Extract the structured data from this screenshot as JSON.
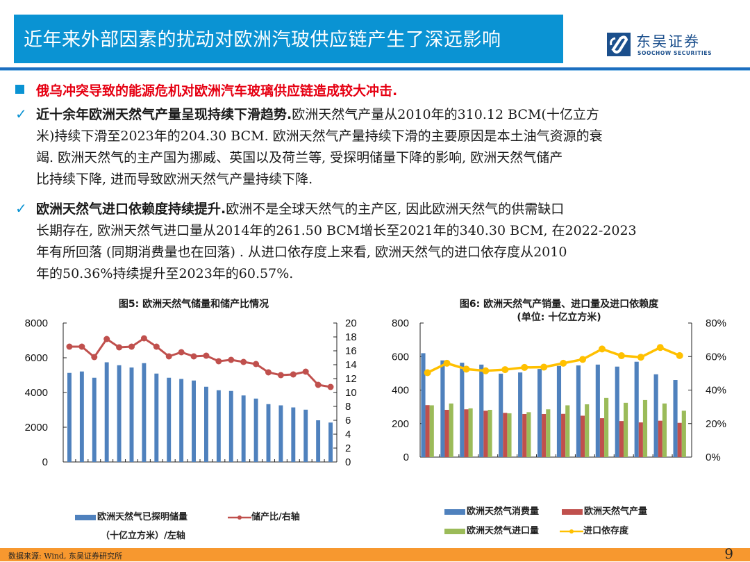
{
  "header": {
    "title": "近年来外部因素的扰动对欧洲汽玻供应链产生了深远影响",
    "logo_cn": "东吴证券",
    "logo_en": "SOOCHOW SECURITIES"
  },
  "body": {
    "headline": "俄乌冲突导致的能源危机对欧洲汽车玻璃供应链造成较大冲击.",
    "points": [
      {
        "bold": "近十余年欧洲天然气产量呈现持续下滑趋势.",
        "lines": [
          "欧洲天然气产量从2010年的310.12 BCM(十亿立方",
          "米)持续下滑至2023年的204.30 BCM. 欧洲天然气产量持续下滑的主要原因是本土油气资源的衰",
          "竭. 欧洲天然气的主产国为挪威、英国以及荷兰等, 受探明储量下降的影响, 欧洲天然气储产",
          "比持续下降, 进而导致欧洲天然气产量持续下降."
        ]
      },
      {
        "bold": "欧洲天然气进口依赖度持续提升.",
        "lines": [
          "欧洲不是全球天然气的主产区, 因此欧洲天然气的供需缺口",
          "长期存在, 欧洲天然气进口量从2014年的261.50 BCM增长至2021年的340.30 BCM, 在2022-2023",
          "年有所回落 (同期消费量也在回落) . 从进口依存度上来看, 欧洲天然气的进口依存度从2010",
          "年的50.36%持续提升至2023年的60.57%."
        ]
      }
    ]
  },
  "footer": {
    "source": "数据来源: Wind, 东吴证券研究所",
    "page": "9"
  },
  "colors": {
    "title_bg": "#0a93d3",
    "bar_blue": "#4f81bd",
    "line_red": "#c0504d",
    "bar_green": "#9bbb59",
    "line_yellow": "#ffc000",
    "footer_bg": "#f7982f"
  },
  "chart_data": [
    {
      "type": "bar+line",
      "title": "图5: 欧洲天然气储量和储产比情况",
      "categories": [
        "2000",
        "2001",
        "2002",
        "2003",
        "2004",
        "2005",
        "2006",
        "2007",
        "2008",
        "2009",
        "2010",
        "2011",
        "2012",
        "2013",
        "2014",
        "2015",
        "2016",
        "2017",
        "2018",
        "2019",
        "2020",
        "2021"
      ],
      "x_tick_labels": [
        "2000",
        "2002",
        "2004",
        "2006",
        "2008",
        "2010",
        "2012",
        "2014",
        "2016",
        "2018",
        "2020"
      ],
      "series": [
        {
          "name": "欧洲天然气已探明储量",
          "name_line2": "（十亿立方米）/左轴",
          "type": "bar",
          "axis": "left",
          "values": [
            5130,
            5210,
            4850,
            5740,
            5570,
            5440,
            5690,
            5090,
            4850,
            4780,
            4690,
            4330,
            4130,
            4090,
            3830,
            3650,
            3330,
            3260,
            3140,
            3010,
            2400,
            2270
          ]
        },
        {
          "name": "储产比/右轴",
          "type": "line",
          "axis": "right",
          "values": [
            16.6,
            16.6,
            15.1,
            17.7,
            16.5,
            16.6,
            17.8,
            16.6,
            15.2,
            15.8,
            15.2,
            15.3,
            14.5,
            14.7,
            14.4,
            14.1,
            12.9,
            12.5,
            12.6,
            13.0,
            11.1,
            10.8
          ]
        }
      ],
      "ylim_left": [
        0,
        8000
      ],
      "yticks_left": [
        "0",
        "2000",
        "4000",
        "6000",
        "8000"
      ],
      "ylim_right": [
        0,
        20
      ],
      "yticks_right": [
        "0",
        "2",
        "4",
        "6",
        "8",
        "10",
        "12",
        "14",
        "16",
        "18",
        "20"
      ],
      "legend_position": "bottom",
      "grid": false
    },
    {
      "type": "bar+line",
      "title": "图6: 欧洲天然气产销量、进口量及进口依赖度",
      "subtitle": "(单位: 十亿立方米)",
      "categories": [
        "2010",
        "2011",
        "2012",
        "2013",
        "2014",
        "2015",
        "2016",
        "2017",
        "2018",
        "2019",
        "2020",
        "2021",
        "2022",
        "2023"
      ],
      "series": [
        {
          "name": "欧洲天然气消费量",
          "type": "bar",
          "axis": "left",
          "values": [
            620,
            577,
            563,
            552,
            498,
            505,
            526,
            544,
            547,
            552,
            540,
            569,
            494,
            460
          ]
        },
        {
          "name": "欧洲天然气产量",
          "type": "bar",
          "axis": "left",
          "values": [
            310.12,
            282,
            285,
            277,
            264,
            257,
            257,
            258,
            247,
            232,
            215,
            207,
            217,
            204.3
          ]
        },
        {
          "name": "欧洲天然气进口量",
          "type": "bar",
          "axis": "left",
          "values": [
            309,
            320,
            291,
            282,
            261.5,
            268,
            285,
            309,
            315,
            353,
            324,
            340.3,
            320,
            277
          ]
        },
        {
          "name": "进口依存度",
          "type": "line",
          "axis": "right",
          "unit": "%",
          "values": [
            50.36,
            56.0,
            52.5,
            51.5,
            52.2,
            53.5,
            53.7,
            56.0,
            58.3,
            64.5,
            60.5,
            59.6,
            65.4,
            60.57
          ]
        }
      ],
      "ylim_left": [
        0,
        800
      ],
      "yticks_left": [
        "0",
        "200",
        "400",
        "600",
        "800"
      ],
      "ylim_right": [
        0,
        80
      ],
      "yticks_right": [
        "0%",
        "20%",
        "40%",
        "60%",
        "80%"
      ],
      "legend_position": "bottom",
      "grid": false
    }
  ]
}
